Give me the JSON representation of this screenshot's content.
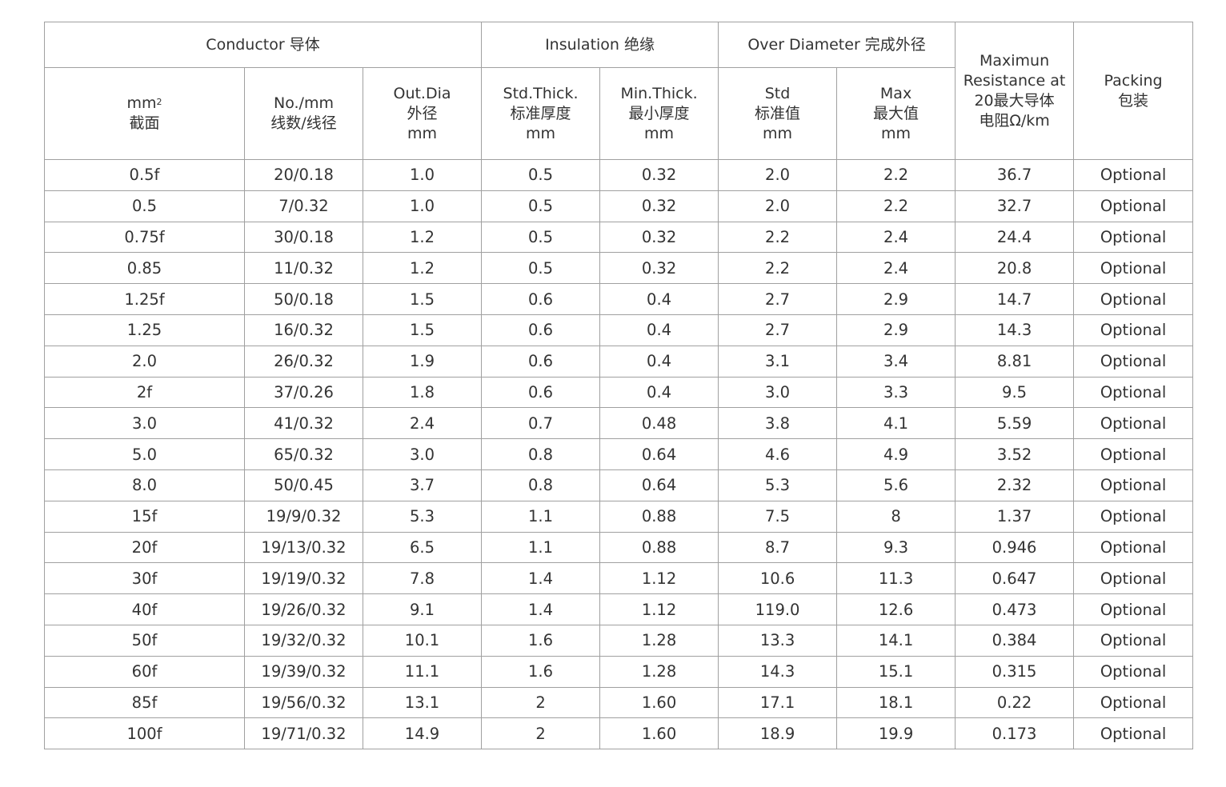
{
  "header": {
    "groups": {
      "conductor": "Conductor 导体",
      "insulation": "Insulation 绝缘",
      "over_diameter": "Over Diameter 完成外径",
      "resistance": [
        "Maximun",
        "Resistance at",
        "20最大导体",
        "电阻Ω/km"
      ],
      "packing": [
        "Packing",
        "包装"
      ]
    },
    "columns": {
      "area": [
        "mm",
        "2",
        "截面"
      ],
      "strands": [
        "No./mm",
        "线数/线径"
      ],
      "out_dia": [
        "Out.Dia",
        "外径",
        "mm"
      ],
      "std_thick": [
        "Std.Thick.",
        "标准厚度",
        "mm"
      ],
      "min_thick": [
        "Min.Thick.",
        "最小厚度",
        "mm"
      ],
      "std": [
        "Std",
        "标准值",
        "mm"
      ],
      "max": [
        "Max",
        "最大值",
        "mm"
      ]
    }
  },
  "rows": [
    [
      "0.5f",
      "20/0.18",
      "1.0",
      "0.5",
      "0.32",
      "2.0",
      "2.2",
      "36.7",
      "Optional"
    ],
    [
      "0.5",
      "7/0.32",
      "1.0",
      "0.5",
      "0.32",
      "2.0",
      "2.2",
      "32.7",
      "Optional"
    ],
    [
      "0.75f",
      "30/0.18",
      "1.2",
      "0.5",
      "0.32",
      "2.2",
      "2.4",
      "24.4",
      "Optional"
    ],
    [
      "0.85",
      "11/0.32",
      "1.2",
      "0.5",
      "0.32",
      "2.2",
      "2.4",
      "20.8",
      "Optional"
    ],
    [
      "1.25f",
      "50/0.18",
      "1.5",
      "0.6",
      "0.4",
      "2.7",
      "2.9",
      "14.7",
      "Optional"
    ],
    [
      "1.25",
      "16/0.32",
      "1.5",
      "0.6",
      "0.4",
      "2.7",
      "2.9",
      "14.3",
      "Optional"
    ],
    [
      "2.0",
      "26/0.32",
      "1.9",
      "0.6",
      "0.4",
      "3.1",
      "3.4",
      "8.81",
      "Optional"
    ],
    [
      "2f",
      "37/0.26",
      "1.8",
      "0.6",
      "0.4",
      "3.0",
      "3.3",
      "9.5",
      "Optional"
    ],
    [
      "3.0",
      "41/0.32",
      "2.4",
      "0.7",
      "0.48",
      "3.8",
      "4.1",
      "5.59",
      "Optional"
    ],
    [
      "5.0",
      "65/0.32",
      "3.0",
      "0.8",
      "0.64",
      "4.6",
      "4.9",
      "3.52",
      "Optional"
    ],
    [
      "8.0",
      "50/0.45",
      "3.7",
      "0.8",
      "0.64",
      "5.3",
      "5.6",
      "2.32",
      "Optional"
    ],
    [
      "15f",
      "19/9/0.32",
      "5.3",
      "1.1",
      "0.88",
      "7.5",
      "8",
      "1.37",
      "Optional"
    ],
    [
      "20f",
      "19/13/0.32",
      "6.5",
      "1.1",
      "0.88",
      "8.7",
      "9.3",
      "0.946",
      "Optional"
    ],
    [
      "30f",
      "19/19/0.32",
      "7.8",
      "1.4",
      "1.12",
      "10.6",
      "11.3",
      "0.647",
      "Optional"
    ],
    [
      "40f",
      "19/26/0.32",
      "9.1",
      "1.4",
      "1.12",
      "119.0",
      "12.6",
      "0.473",
      "Optional"
    ],
    [
      "50f",
      "19/32/0.32",
      "10.1",
      "1.6",
      "1.28",
      "13.3",
      "14.1",
      "0.384",
      "Optional"
    ],
    [
      "60f",
      "19/39/0.32",
      "11.1",
      "1.6",
      "1.28",
      "14.3",
      "15.1",
      "0.315",
      "Optional"
    ],
    [
      "85f",
      "19/56/0.32",
      "13.1",
      "2",
      "1.60",
      "17.1",
      "18.1",
      "0.22",
      "Optional"
    ],
    [
      "100f",
      "19/71/0.32",
      "14.9",
      "2",
      "1.60",
      "18.9",
      "19.9",
      "0.173",
      "Optional"
    ]
  ]
}
